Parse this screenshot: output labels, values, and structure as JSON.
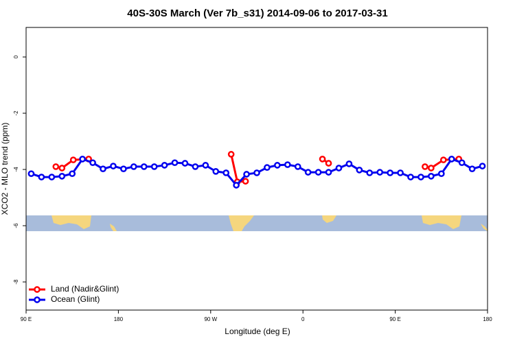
{
  "chart_data": {
    "type": "line",
    "title": "40S-30S March (Ver 7b_s31)   2014-09-06 to 2017-03-31",
    "x_label": "Longitude (deg E)",
    "y_label": "XCO2 - MLO trend (ppm)",
    "xlim": [
      90,
      540
    ],
    "ylim": [
      -9,
      1.05
    ],
    "xticks": [
      {
        "value": 90,
        "label": "90 E"
      },
      180,
      {
        "value": 270,
        "label": "90 W"
      },
      {
        "value": 360,
        "label": "0"
      },
      {
        "value": 450,
        "label": "90 E"
      },
      {
        "value": 540,
        "label": "180"
      }
    ],
    "yticks": [
      0,
      -2,
      -4,
      -6,
      -8
    ],
    "legend": "bottom-left",
    "series": [
      {
        "name": "Land (Nadir&Glint)",
        "color": "#ff0000",
        "x": [
          119,
          125,
          136,
          151,
          null,
          290,
          296,
          304,
          null,
          379,
          385,
          null,
          479,
          485,
          497,
          512
        ],
        "values": [
          -3.9,
          -3.95,
          -3.66,
          -3.63,
          null,
          -3.46,
          -4.44,
          -4.42,
          null,
          -3.63,
          -3.78,
          null,
          -3.9,
          -3.95,
          -3.66,
          -3.63
        ]
      },
      {
        "name": "Ocean (Glint)",
        "color": "#0000ee",
        "x": [
          95,
          105,
          115,
          125,
          135,
          145,
          155,
          165,
          175,
          185,
          195,
          205,
          215,
          225,
          235,
          245,
          255,
          265,
          275,
          285,
          295,
          305,
          315,
          325,
          335,
          345,
          355,
          365,
          375,
          385,
          395,
          405,
          415,
          425,
          435,
          445,
          455,
          465,
          475,
          485,
          495,
          505,
          515,
          525,
          535
        ],
        "values": [
          -4.15,
          -4.27,
          -4.27,
          -4.24,
          -4.15,
          -3.63,
          -3.76,
          -3.98,
          -3.88,
          -3.98,
          -3.9,
          -3.9,
          -3.9,
          -3.85,
          -3.76,
          -3.78,
          -3.9,
          -3.85,
          -4.07,
          -4.12,
          -4.56,
          -4.17,
          -4.12,
          -3.93,
          -3.85,
          -3.83,
          -3.9,
          -4.1,
          -4.1,
          -4.1,
          -3.95,
          -3.8,
          -4.02,
          -4.12,
          -4.1,
          -4.12,
          -4.12,
          -4.27,
          -4.27,
          -4.24,
          -4.15,
          -3.63,
          -3.76,
          -3.98,
          -3.88
        ]
      }
    ]
  }
}
